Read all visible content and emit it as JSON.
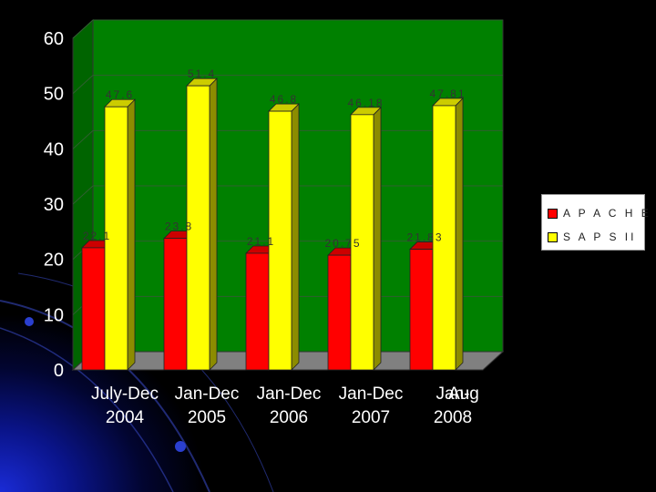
{
  "chart_data": {
    "type": "bar",
    "categories": [
      [
        "July-Dec",
        "2004"
      ],
      [
        "Jan-Dec",
        "2005"
      ],
      [
        "Jan-Dec",
        "2006"
      ],
      [
        "Jan-Dec",
        "2007"
      ],
      [
        "Jan-",
        "2008"
      ]
    ],
    "category_extra": "Aug",
    "series": [
      {
        "name": "APACHE II",
        "color": "#ff0000",
        "values": [
          22.1,
          23.8,
          21.1,
          20.75,
          21.83
        ],
        "labels": [
          "22.1",
          "23.8",
          "21.1",
          "20.75",
          "21.83"
        ]
      },
      {
        "name": "SAPS II",
        "color": "#ffff00",
        "values": [
          47.6,
          51.4,
          46.8,
          46.18,
          47.81
        ],
        "labels": [
          "47.6",
          "51.4",
          "46.8",
          "46.18",
          "47.81"
        ]
      }
    ],
    "ylim": [
      0,
      60
    ],
    "yticks": [
      "0",
      "10",
      "20",
      "30",
      "40",
      "50",
      "60"
    ],
    "grid": true,
    "legend": "right",
    "colors": {
      "background": "#000000",
      "plot_back": "#008000",
      "plot_floor": "#808080"
    }
  },
  "legend": {
    "items": [
      {
        "label": "A P A C H E  II",
        "color": "#ff0000"
      },
      {
        "label": "S A P S  II",
        "color": "#ffff00"
      }
    ]
  }
}
